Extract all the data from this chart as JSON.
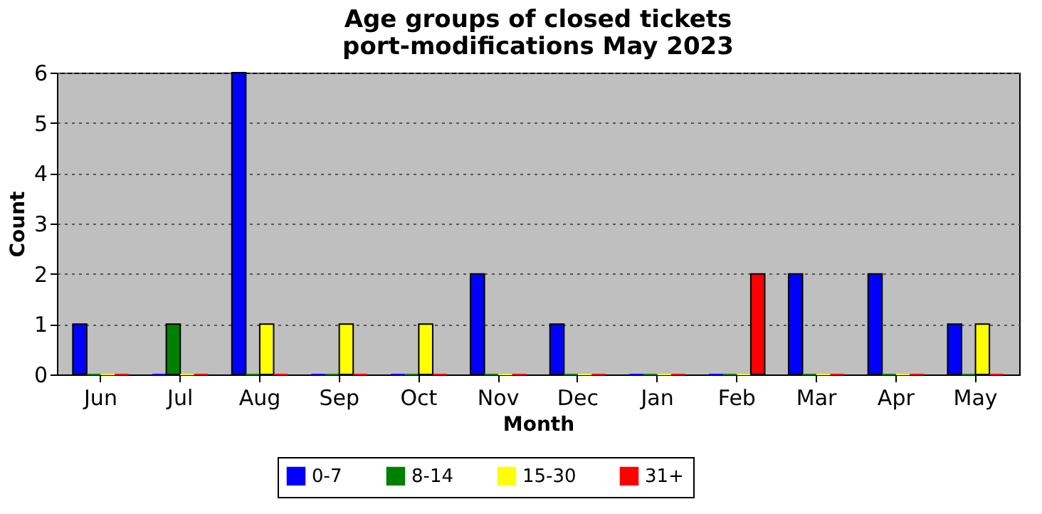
{
  "chart_data": {
    "type": "bar",
    "title": "Age groups of closed tickets\nport-modifications May 2023",
    "xlabel": "Month",
    "ylabel": "Count",
    "categories": [
      "Jun",
      "Jul",
      "Aug",
      "Sep",
      "Oct",
      "Nov",
      "Dec",
      "Jan",
      "Feb",
      "Mar",
      "Apr",
      "May"
    ],
    "series": [
      {
        "name": "0-7",
        "color": "#0000ff",
        "values": [
          1,
          0,
          6,
          0,
          0,
          2,
          1,
          0,
          0,
          2,
          2,
          1
        ]
      },
      {
        "name": "8-14",
        "color": "#008000",
        "values": [
          0,
          1,
          0,
          0,
          0,
          0,
          0,
          0,
          0,
          0,
          0,
          0
        ]
      },
      {
        "name": "15-30",
        "color": "#ffff00",
        "values": [
          0,
          0,
          1,
          1,
          1,
          0,
          0,
          0,
          0,
          0,
          0,
          1
        ]
      },
      {
        "name": "31+",
        "color": "#ff0000",
        "values": [
          0,
          0,
          0,
          0,
          0,
          0,
          0,
          0,
          2,
          0,
          0,
          0
        ]
      }
    ],
    "ylim": [
      0,
      6
    ],
    "yticks": [
      0,
      1,
      2,
      3,
      4,
      5,
      6
    ],
    "grid": "y",
    "legend": "bottom"
  }
}
